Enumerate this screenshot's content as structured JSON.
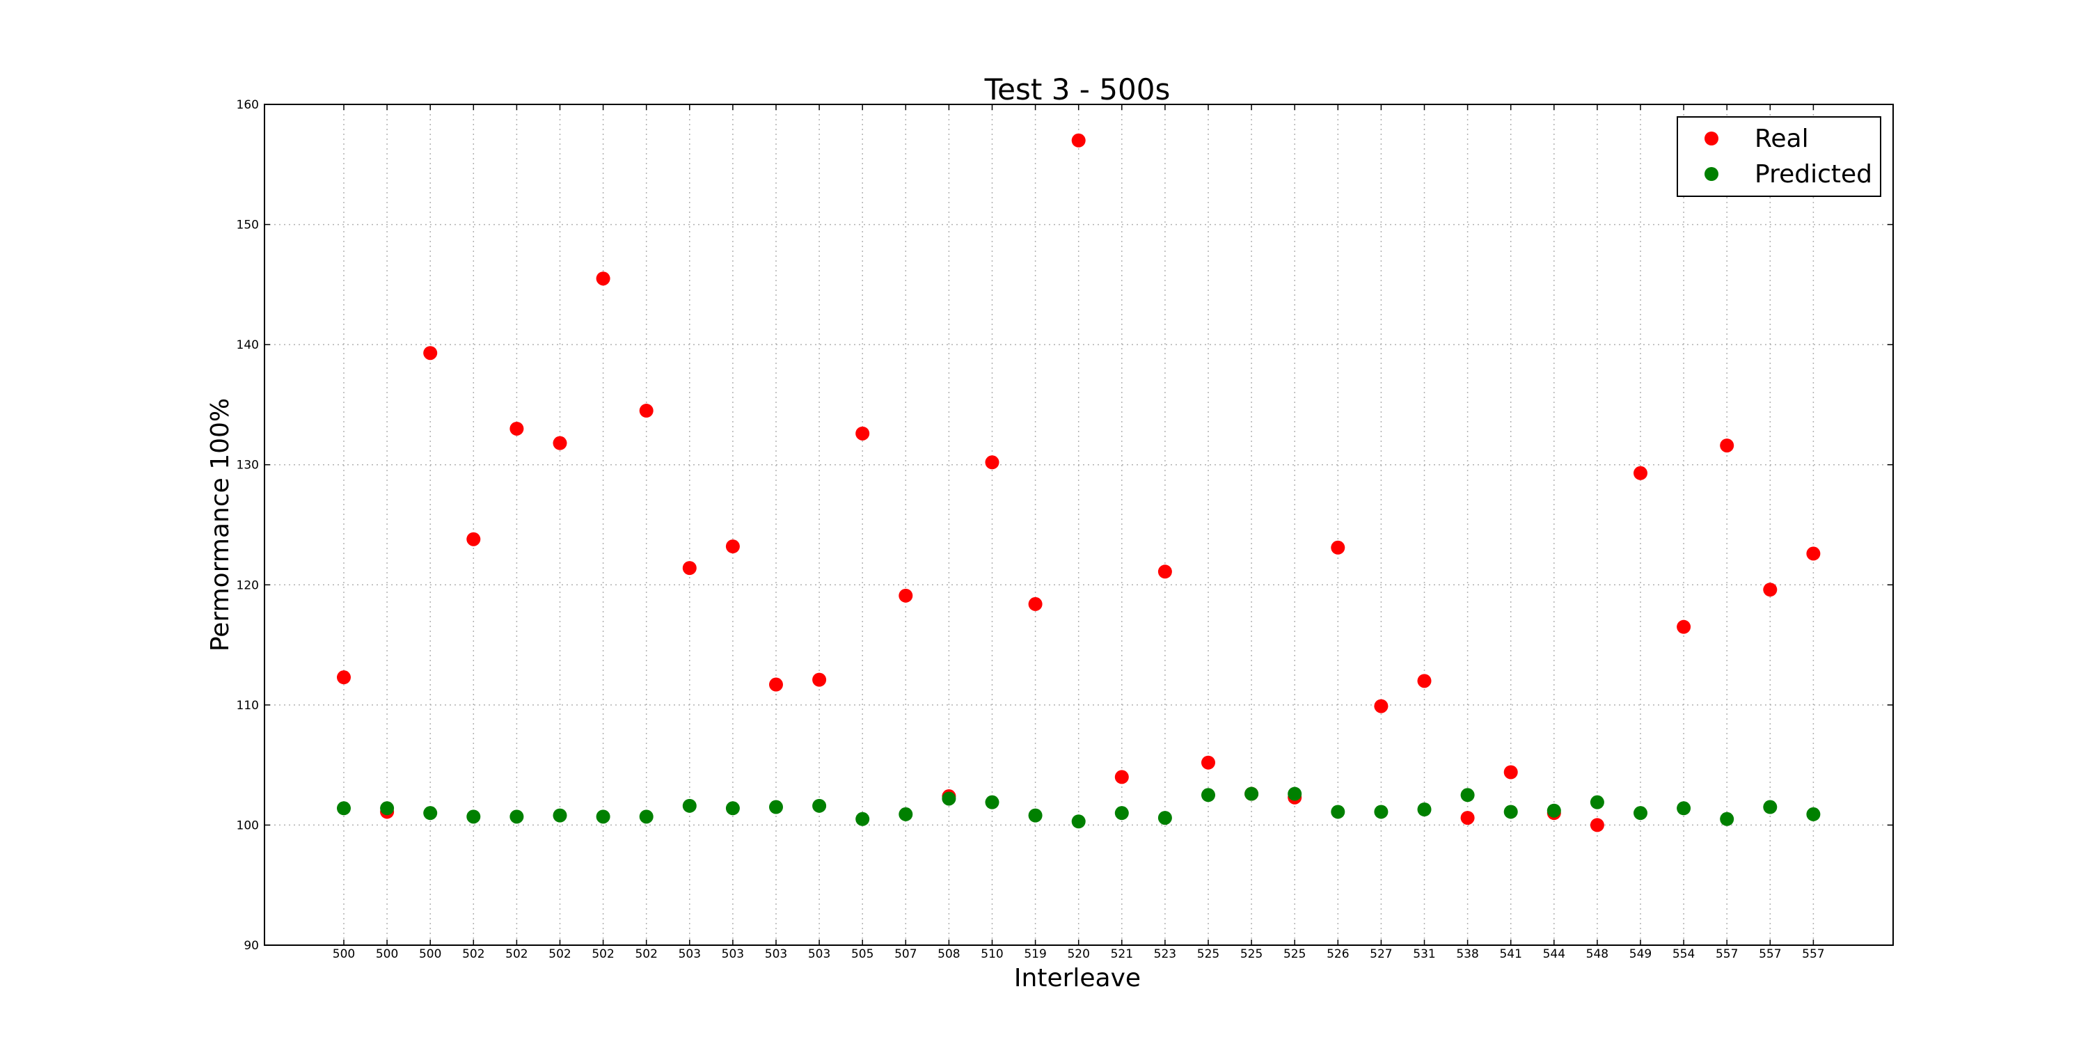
{
  "chart_data": {
    "type": "scatter",
    "title": "Test 3 - 500s",
    "xlabel": "Interleave",
    "ylabel": "Permormance 100%",
    "ylim": [
      90,
      160
    ],
    "yticks": [
      90,
      100,
      110,
      120,
      130,
      140,
      150,
      160
    ],
    "grid": true,
    "legend_position": "top-right",
    "categories": [
      "500",
      "500",
      "500",
      "502",
      "502",
      "502",
      "502",
      "502",
      "503",
      "503",
      "503",
      "503",
      "505",
      "507",
      "508",
      "510",
      "519",
      "520",
      "521",
      "523",
      "525",
      "525",
      "525",
      "526",
      "527",
      "531",
      "538",
      "541",
      "544",
      "548",
      "549",
      "554",
      "557",
      "557",
      "557"
    ],
    "series": [
      {
        "name": "Real",
        "color": "#ff0000",
        "values": [
          112.3,
          101.1,
          139.3,
          123.8,
          133.0,
          131.8,
          145.5,
          134.5,
          121.4,
          123.2,
          111.7,
          112.1,
          132.6,
          119.1,
          102.4,
          130.2,
          118.4,
          157.0,
          104.0,
          121.1,
          105.2,
          102.6,
          102.3,
          123.1,
          109.9,
          112.0,
          100.6,
          104.4,
          101.0,
          100.0,
          129.3,
          116.5,
          131.6,
          119.6,
          122.6
        ]
      },
      {
        "name": "Predicted",
        "color": "#008000",
        "values": [
          101.4,
          101.4,
          101.0,
          100.7,
          100.7,
          100.8,
          100.7,
          100.7,
          101.6,
          101.4,
          101.5,
          101.6,
          100.5,
          100.9,
          102.2,
          101.9,
          100.8,
          100.3,
          101.0,
          100.6,
          102.5,
          102.6,
          102.6,
          101.1,
          101.1,
          101.3,
          102.5,
          101.1,
          101.2,
          101.9,
          101.0,
          101.4,
          100.5,
          101.5,
          100.9
        ]
      }
    ]
  }
}
